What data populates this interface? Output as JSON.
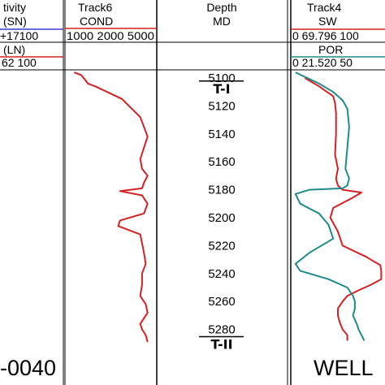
{
  "header": {
    "track_left": {
      "title": "tivity",
      "curve1": "(SN)",
      "curve1_scale": "+17100",
      "curve2": "(LN)",
      "curve2_scale": "62 100"
    },
    "track6": {
      "title": "Track6",
      "curve": "COND",
      "scale": "1000 2000 5000"
    },
    "depth": {
      "title": "Depth",
      "unit": "MD"
    },
    "track4": {
      "title": "Track4",
      "curve1": "SW",
      "curve1_scale": "0 69.796 100",
      "curve2": "POR",
      "curve2_scale": "0 21.520 50"
    }
  },
  "depth_track": {
    "ticks": [
      "5100",
      "5120",
      "5140",
      "5160",
      "5180",
      "5200",
      "5220",
      "5240",
      "5260",
      "5280"
    ],
    "markers": [
      "T-I",
      "T-II"
    ]
  },
  "footer": {
    "left_text": "-0040",
    "right_text": "WELL"
  },
  "colors": {
    "cond_curve": "#d42020",
    "sw_curve": "#d42020",
    "por_curve": "#1f8a8a",
    "sn_line": "#3a3ad0",
    "ln_line": "#d42020",
    "sw_header_line": "#d42020",
    "por_header_line": "#1f8a8a"
  },
  "chart_data": [
    {
      "type": "line",
      "name": "COND",
      "ylabel": "Depth",
      "x": [
        0.1,
        0.18,
        0.25,
        0.33,
        0.62,
        0.82,
        0.86,
        0.9,
        0.86,
        0.82,
        0.84,
        0.9,
        0.86,
        0.84,
        0.6,
        0.84,
        0.9,
        0.86,
        0.6,
        0.58,
        0.82,
        0.86,
        0.88,
        0.84,
        0.84,
        0.82,
        0.88,
        0.9,
        0.86,
        0.82,
        0.84,
        0.88,
        0.9
      ],
      "y": [
        5096,
        5098,
        5104,
        5106,
        5115,
        5128,
        5135,
        5142,
        5150,
        5158,
        5165,
        5170,
        5175,
        5179,
        5181,
        5184,
        5190,
        5197,
        5202,
        5206,
        5212,
        5225,
        5233,
        5240,
        5248,
        5256,
        5262,
        5268,
        5272,
        5276,
        5280,
        5284,
        5289
      ]
    },
    {
      "type": "line",
      "name": "SW",
      "ylabel": "Depth",
      "x": [
        0.15,
        0.3,
        0.45,
        0.47,
        0.48,
        0.48,
        0.47,
        0.5,
        0.48,
        0.5,
        0.55,
        0.75,
        0.65,
        0.45,
        0.42,
        0.5,
        0.55,
        0.8,
        0.95,
        0.96,
        0.96,
        0.85,
        0.72,
        0.6,
        0.55,
        0.5,
        0.5,
        0.52,
        0.55,
        0.6,
        0.6
      ],
      "y": [
        5100,
        5106,
        5113,
        5118,
        5125,
        5140,
        5155,
        5165,
        5172,
        5177,
        5180,
        5182,
        5186,
        5193,
        5200,
        5210,
        5220,
        5228,
        5234,
        5238,
        5244,
        5248,
        5252,
        5256,
        5260,
        5265,
        5270,
        5275,
        5280,
        5284,
        5288
      ]
    },
    {
      "type": "line",
      "name": "POR",
      "ylabel": "Depth",
      "x": [
        0.05,
        0.3,
        0.45,
        0.55,
        0.6,
        0.62,
        0.6,
        0.58,
        0.62,
        0.6,
        0.55,
        0.2,
        0.05,
        0.1,
        0.3,
        0.4,
        0.45,
        0.2,
        0.05,
        0.1,
        0.4,
        0.6,
        0.66,
        0.68,
        0.68,
        0.66,
        0.7,
        0.72,
        0.75,
        0.78
      ],
      "y": [
        5096,
        5104,
        5110,
        5116,
        5122,
        5135,
        5150,
        5165,
        5172,
        5177,
        5179,
        5180,
        5183,
        5190,
        5197,
        5205,
        5215,
        5225,
        5233,
        5238,
        5244,
        5250,
        5256,
        5260,
        5265,
        5270,
        5276,
        5280,
        5284,
        5288
      ]
    }
  ]
}
